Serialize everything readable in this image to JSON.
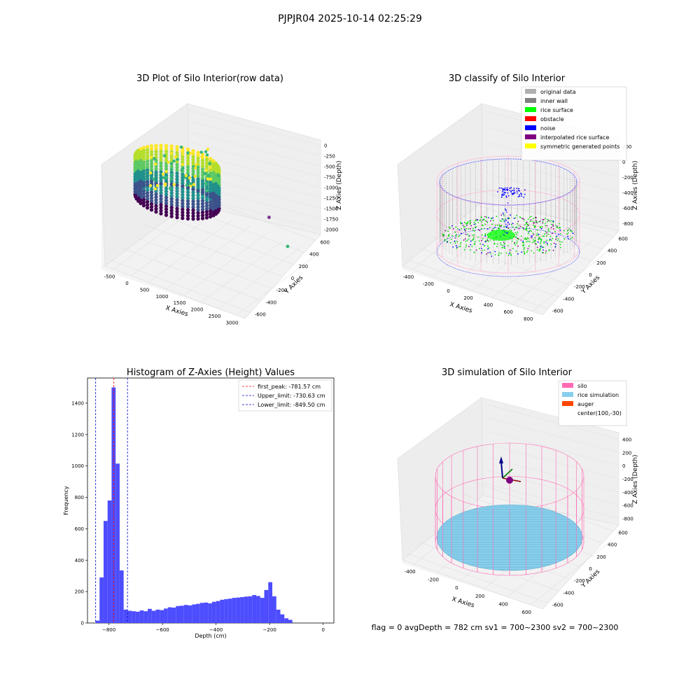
{
  "figure": {
    "suptitle": "PJPJR04 2025-10-14 02:25:29",
    "footer": "flag = 0     avgDepth = 782 cm  sv1 = 700~2300  sv2 = 700~2300"
  },
  "chart_data": [
    {
      "type": "scatter3d",
      "title": "3D Plot of Silo Interior(row data)",
      "xlabel": "X Axies",
      "ylabel": "Y Axies",
      "zlabel": "Z Axies (Depth)",
      "x_ticks": [
        "-500",
        "0",
        "500",
        "1000",
        "1500",
        "2000",
        "2500",
        "3000"
      ],
      "y_ticks": [
        "-600",
        "-400",
        "-200",
        "0",
        "200",
        "400",
        "600"
      ],
      "z_ticks": [
        "0",
        "-250",
        "-500",
        "-750",
        "-1000",
        "-1250",
        "-1500",
        "-1750",
        "-2000"
      ],
      "xlim": [
        -600,
        3000
      ],
      "ylim": [
        -650,
        650
      ],
      "zlim": [
        -2100,
        100
      ],
      "colormap": "viridis",
      "outliers": [
        {
          "x": 1900,
          "y": 500,
          "z": -1900,
          "color": "#7b3294"
        },
        {
          "x": 2900,
          "y": 150,
          "z": -1750,
          "color": "#35b779"
        },
        {
          "x": 900,
          "y": 100,
          "z": -1200,
          "color": "#35b779"
        },
        {
          "x": 1050,
          "y": 200,
          "z": -1000,
          "color": "#35b779"
        }
      ]
    },
    {
      "type": "scatter3d",
      "title": "3D classify of Silo Interior",
      "xlabel": "X Axies",
      "ylabel": "Y Axies",
      "zlabel": "Z Axies (Depth)",
      "x_ticks": [
        "-400",
        "-200",
        "0",
        "200",
        "400",
        "600",
        "800"
      ],
      "y_ticks": [
        "-600",
        "-400",
        "-200",
        "0",
        "200",
        "400",
        "600"
      ],
      "z_ticks": [
        "200",
        "0",
        "-200",
        "-400",
        "-600",
        "-800"
      ],
      "legend_position": "top-right",
      "legend": [
        {
          "label": "original data",
          "color": "#b0b0b0"
        },
        {
          "label": "inner wall",
          "color": "#808080"
        },
        {
          "label": "rice surface",
          "color": "#00ff00"
        },
        {
          "label": "obstacle",
          "color": "#ff0000"
        },
        {
          "label": "noise",
          "color": "#0000ff"
        },
        {
          "label": "interpolated rice surface",
          "color": "#800080"
        },
        {
          "label": "symmetric generated points",
          "color": "#ffff00"
        }
      ]
    },
    {
      "type": "bar",
      "title": "Histogram of Z-Axies (Height) Values",
      "xlabel": "Depth (cm)",
      "ylabel": "Frequency",
      "xlim": [
        -880,
        40
      ],
      "ylim": [
        0,
        1560
      ],
      "x_ticks": [
        -800,
        -600,
        -400,
        -200,
        0
      ],
      "y_ticks": [
        0,
        200,
        400,
        600,
        800,
        1000,
        1200,
        1400
      ],
      "bar_color": "#4d4dff",
      "bin_start": -850,
      "bin_width": 15,
      "values": [
        15,
        290,
        650,
        780,
        1500,
        1015,
        335,
        85,
        78,
        75,
        72,
        80,
        75,
        90,
        78,
        85,
        82,
        92,
        100,
        98,
        108,
        110,
        115,
        112,
        118,
        122,
        128,
        130,
        125,
        135,
        140,
        148,
        152,
        155,
        160,
        162,
        165,
        168,
        170,
        178,
        172,
        160,
        210,
        260,
        170,
        85,
        55,
        30,
        20
      ],
      "legend_position": "top-right",
      "lines": [
        {
          "label": "first_peak: -781.57 cm",
          "value": -781.57,
          "color": "#ff0000"
        },
        {
          "label": "Upper_limit: -730.63 cm",
          "value": -730.63,
          "color": "#0000cc"
        },
        {
          "label": "Lower_limit: -849.50 cm",
          "value": -849.5,
          "color": "#0000cc"
        }
      ]
    },
    {
      "type": "scatter3d",
      "title": "3D simulation of Silo Interior",
      "xlabel": "X Axies",
      "ylabel": "Y Axies",
      "zlabel": "Z Axies (Depth)",
      "x_ticks": [
        "-400",
        "-200",
        "0",
        "200",
        "400",
        "600"
      ],
      "y_ticks": [
        "-600",
        "-400",
        "-200",
        "0",
        "200",
        "400",
        "600"
      ],
      "z_ticks": [
        "400",
        "200",
        "0",
        "-200",
        "-400",
        "-600",
        "-800"
      ],
      "legend_position": "top-right",
      "legend": [
        {
          "label": "silo",
          "color": "#ff69b4"
        },
        {
          "label": "rice simulation",
          "color": "#87ceeb"
        },
        {
          "label": "auger",
          "color": "#ff4500"
        },
        {
          "label": "center(100,-30)",
          "color": ""
        }
      ]
    }
  ]
}
